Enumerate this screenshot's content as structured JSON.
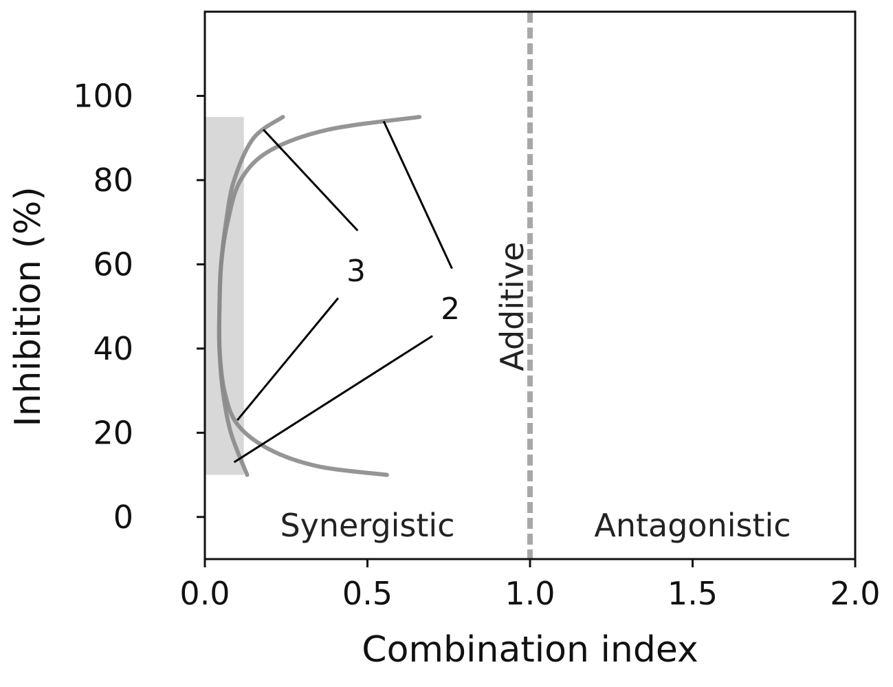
{
  "chart_data": {
    "type": "line",
    "title": "",
    "xlabel": "Combination index",
    "ylabel": "Inhibition (%)",
    "xlim": [
      0,
      2
    ],
    "ylim": [
      -10,
      120
    ],
    "xticks": [
      0.0,
      0.5,
      1.0,
      1.5,
      2.0
    ],
    "xtick_labels": [
      "0.0",
      "0.5",
      "1.0",
      "1.5",
      "2.0"
    ],
    "yticks": [
      0,
      20,
      40,
      60,
      80,
      100
    ],
    "ytick_labels": [
      "0",
      "20",
      "40",
      "60",
      "80",
      "100"
    ],
    "grid": false,
    "legend": "none",
    "reference_line": {
      "x": 1.0,
      "style": "dashed",
      "label": "Additive",
      "color": "#a8a8a8"
    },
    "regions": [
      {
        "label": "Synergistic",
        "x": 0.5,
        "y": -2
      },
      {
        "label": "Antagonistic",
        "x": 1.5,
        "y": -2
      }
    ],
    "shaded_band": {
      "x": [
        0,
        0.12
      ],
      "y": [
        10,
        95
      ],
      "color": "#c8c8c8"
    },
    "series": [
      {
        "label": "2",
        "color": "#8a8a8a",
        "points": [
          {
            "x": 0.56,
            "y": 10
          },
          {
            "x": 0.35,
            "y": 12
          },
          {
            "x": 0.2,
            "y": 16
          },
          {
            "x": 0.1,
            "y": 22
          },
          {
            "x": 0.06,
            "y": 30
          },
          {
            "x": 0.045,
            "y": 40
          },
          {
            "x": 0.045,
            "y": 50
          },
          {
            "x": 0.05,
            "y": 60
          },
          {
            "x": 0.07,
            "y": 70
          },
          {
            "x": 0.11,
            "y": 80
          },
          {
            "x": 0.2,
            "y": 87
          },
          {
            "x": 0.38,
            "y": 92
          },
          {
            "x": 0.66,
            "y": 95
          }
        ]
      },
      {
        "label": "3",
        "color": "#8a8a8a",
        "points": [
          {
            "x": 0.13,
            "y": 10
          },
          {
            "x": 0.08,
            "y": 20
          },
          {
            "x": 0.055,
            "y": 30
          },
          {
            "x": 0.045,
            "y": 40
          },
          {
            "x": 0.045,
            "y": 50
          },
          {
            "x": 0.05,
            "y": 60
          },
          {
            "x": 0.065,
            "y": 70
          },
          {
            "x": 0.09,
            "y": 80
          },
          {
            "x": 0.15,
            "y": 90
          },
          {
            "x": 0.24,
            "y": 95
          }
        ]
      }
    ],
    "annotations": [
      {
        "text": "3",
        "text_at": {
          "x": 0.465,
          "y": 56
        },
        "leaders": [
          {
            "from": {
              "x": 0.47,
              "y": 68
            },
            "to": {
              "x": 0.18,
              "y": 92
            }
          },
          {
            "from": {
              "x": 0.41,
              "y": 52
            },
            "to": {
              "x": 0.1,
              "y": 23
            }
          }
        ]
      },
      {
        "text": "2",
        "text_at": {
          "x": 0.755,
          "y": 47
        },
        "leaders": [
          {
            "from": {
              "x": 0.76,
              "y": 59
            },
            "to": {
              "x": 0.55,
              "y": 94
            }
          },
          {
            "from": {
              "x": 0.7,
              "y": 43
            },
            "to": {
              "x": 0.09,
              "y": 13
            }
          }
        ]
      }
    ]
  }
}
